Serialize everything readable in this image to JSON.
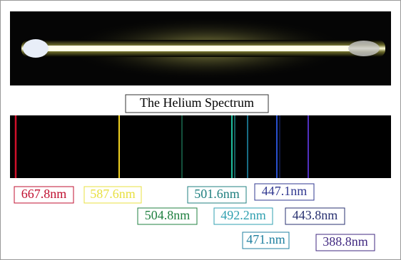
{
  "title": "The Helium Spectrum",
  "labels": [
    "667.8nm",
    "587.6nm",
    "501.6nm",
    "447.1nm",
    "504.8nm",
    "492.2nm",
    "443.8nm",
    "471.nm",
    "388.8nm"
  ]
}
